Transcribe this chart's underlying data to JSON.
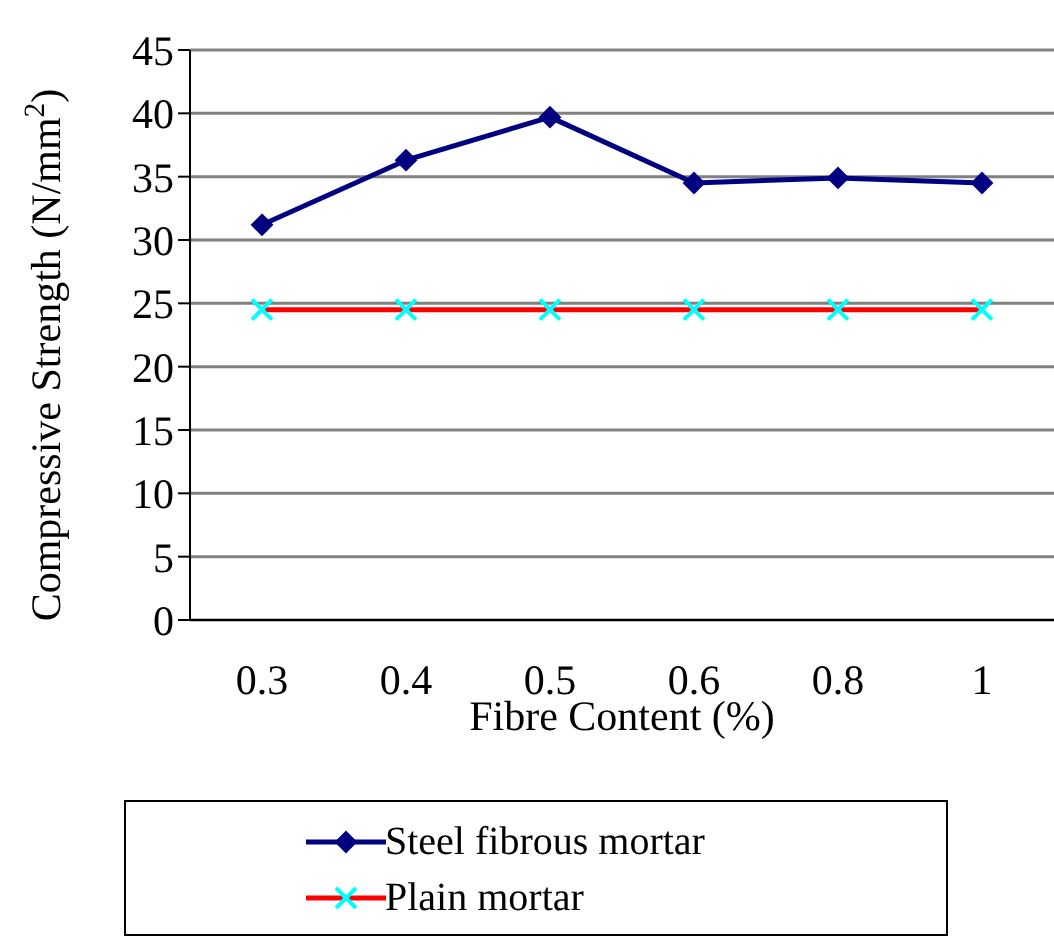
{
  "chart_data": {
    "type": "line",
    "xlabel": "Fibre Content (%)",
    "ylabel": "Compressive Strength (N/mm$^{2}$)",
    "categories": [
      "0.3",
      "0.4",
      "0.5",
      "0.6",
      "0.8",
      "1"
    ],
    "series": [
      {
        "name": "Steel fibrous mortar",
        "color": "#000080",
        "marker": "diamond",
        "values": [
          31.2,
          36.3,
          39.7,
          34.5,
          34.9,
          34.5
        ]
      },
      {
        "name": "Plain mortar",
        "color": "#ff0000",
        "colors": [
          "#00ffff",
          "#00ffff",
          "#00ffff",
          "#00ffff",
          "#00ffff",
          "#00ffff"
        ],
        "marker": "cross",
        "values": [
          24.5,
          24.5,
          24.5,
          24.5,
          24.5,
          24.5
        ]
      }
    ],
    "ylim": [
      0,
      45
    ],
    "yticks": [
      0,
      5,
      10,
      15,
      20,
      25,
      30,
      35,
      40,
      45
    ],
    "grid": "y",
    "legend": "bottom"
  }
}
